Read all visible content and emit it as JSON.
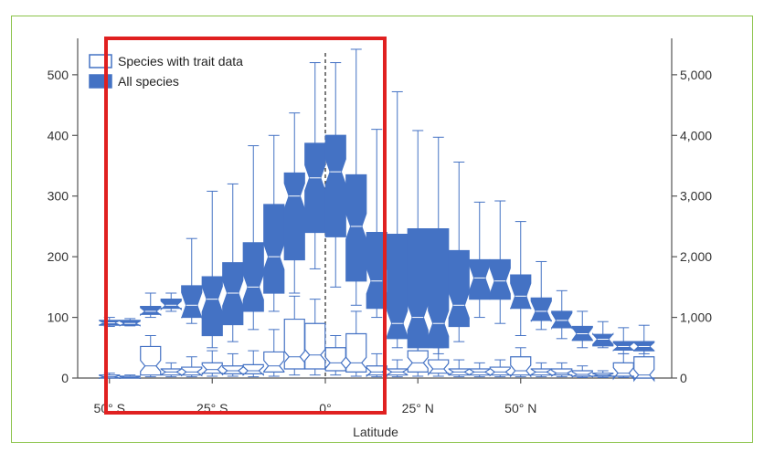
{
  "chart_data": {
    "type": "box",
    "xlabel": "Latitude",
    "x_tick_labels": [
      "50° S",
      "25° S",
      "0°",
      "25° N",
      "50° N"
    ],
    "x_tick_values": [
      -52.5,
      -27.5,
      0,
      22.5,
      47.5
    ],
    "x_domain": [
      -56,
      80
    ],
    "y_left_ticks": [
      "0",
      "100",
      "200",
      "300",
      "400",
      "500"
    ],
    "y_left_range": [
      0,
      560
    ],
    "y_right_ticks": [
      "0",
      "1,000",
      "2,000",
      "3,000",
      "4,000",
      "5,000"
    ],
    "y_right_range": [
      0,
      5600
    ],
    "zero_line_x": 0,
    "legend": {
      "placement": "top-left",
      "entries": [
        "Species with trait data",
        "All species"
      ]
    },
    "colors": {
      "box": "#4472c4",
      "highlight": "#e02020",
      "frame": "#8bc34a"
    },
    "series": [
      {
        "name": "All species",
        "axis": "right",
        "style": "filled",
        "boxes": [
          {
            "lat": -52.5,
            "min": 850,
            "q1": 870,
            "median": 910,
            "q3": 950,
            "max": 1000
          },
          {
            "lat": -47.5,
            "min": 860,
            "q1": 870,
            "median": 900,
            "q3": 950,
            "max": 980
          },
          {
            "lat": -42.5,
            "min": 1000,
            "q1": 1050,
            "median": 1100,
            "q3": 1180,
            "max": 1400
          },
          {
            "lat": -37.5,
            "min": 1100,
            "q1": 1150,
            "median": 1200,
            "q3": 1300,
            "max": 1400
          },
          {
            "lat": -32.5,
            "min": 900,
            "q1": 1000,
            "median": 1200,
            "q3": 1520,
            "max": 2300
          },
          {
            "lat": -27.5,
            "min": 500,
            "q1": 700,
            "median": 1300,
            "q3": 1670,
            "max": 3080
          },
          {
            "lat": -22.5,
            "min": 600,
            "q1": 880,
            "median": 1400,
            "q3": 1900,
            "max": 3200
          },
          {
            "lat": -17.5,
            "min": 800,
            "q1": 1100,
            "median": 1500,
            "q3": 2230,
            "max": 3830
          },
          {
            "lat": -12.5,
            "min": 1100,
            "q1": 1400,
            "median": 2000,
            "q3": 2860,
            "max": 4000
          },
          {
            "lat": -7.5,
            "min": 1400,
            "q1": 1950,
            "median": 3000,
            "q3": 3380,
            "max": 4370
          },
          {
            "lat": -2.5,
            "min": 1800,
            "q1": 2400,
            "median": 3300,
            "q3": 3870,
            "max": 5200
          },
          {
            "lat": 2.5,
            "min": 1500,
            "q1": 2330,
            "median": 3400,
            "q3": 4000,
            "max": 5200
          },
          {
            "lat": 7.5,
            "min": 1200,
            "q1": 1600,
            "median": 2500,
            "q3": 3350,
            "max": 5420
          },
          {
            "lat": 12.5,
            "min": 1000,
            "q1": 1150,
            "median": 1600,
            "q3": 2400,
            "max": 4100
          },
          {
            "lat": 17.5,
            "min": 500,
            "q1": 650,
            "median": 900,
            "q3": 2370,
            "max": 4720
          },
          {
            "lat": 22.5,
            "min": 400,
            "q1": 500,
            "median": 1000,
            "q3": 2460,
            "max": 4080
          },
          {
            "lat": 27.5,
            "min": 400,
            "q1": 500,
            "median": 900,
            "q3": 2460,
            "max": 3970
          },
          {
            "lat": 32.5,
            "min": 600,
            "q1": 850,
            "median": 1200,
            "q3": 2100,
            "max": 3560
          },
          {
            "lat": 37.5,
            "min": 1000,
            "q1": 1300,
            "median": 1650,
            "q3": 1950,
            "max": 2900
          },
          {
            "lat": 42.5,
            "min": 900,
            "q1": 1300,
            "median": 1600,
            "q3": 1950,
            "max": 2920
          },
          {
            "lat": 47.5,
            "min": 700,
            "q1": 1150,
            "median": 1350,
            "q3": 1700,
            "max": 2580
          },
          {
            "lat": 52.5,
            "min": 800,
            "q1": 950,
            "median": 1100,
            "q3": 1320,
            "max": 1920
          },
          {
            "lat": 57.5,
            "min": 650,
            "q1": 830,
            "median": 950,
            "q3": 1100,
            "max": 1440
          },
          {
            "lat": 62.5,
            "min": 500,
            "q1": 620,
            "median": 730,
            "q3": 850,
            "max": 1100
          },
          {
            "lat": 67.5,
            "min": 500,
            "q1": 530,
            "median": 640,
            "q3": 720,
            "max": 930
          },
          {
            "lat": 72.5,
            "min": 400,
            "q1": 460,
            "median": 520,
            "q3": 600,
            "max": 830
          },
          {
            "lat": 77.5,
            "min": 400,
            "q1": 450,
            "median": 520,
            "q3": 600,
            "max": 870
          }
        ]
      },
      {
        "name": "Species with trait data",
        "axis": "left",
        "style": "outline",
        "boxes": [
          {
            "lat": -52.5,
            "min": 0,
            "q1": 0,
            "median": 2,
            "q3": 5,
            "max": 8
          },
          {
            "lat": -47.5,
            "min": 0,
            "q1": 0,
            "median": 1,
            "q3": 3,
            "max": 5
          },
          {
            "lat": -42.5,
            "min": 2,
            "q1": 5,
            "median": 20,
            "q3": 52,
            "max": 70
          },
          {
            "lat": -37.5,
            "min": 2,
            "q1": 5,
            "median": 10,
            "q3": 15,
            "max": 25
          },
          {
            "lat": -32.5,
            "min": 2,
            "q1": 5,
            "median": 10,
            "q3": 18,
            "max": 35
          },
          {
            "lat": -27.5,
            "min": 3,
            "q1": 8,
            "median": 14,
            "q3": 25,
            "max": 45
          },
          {
            "lat": -22.5,
            "min": 3,
            "q1": 7,
            "median": 12,
            "q3": 20,
            "max": 40
          },
          {
            "lat": -17.5,
            "min": 2,
            "q1": 7,
            "median": 12,
            "q3": 22,
            "max": 45
          },
          {
            "lat": -12.5,
            "min": 3,
            "q1": 10,
            "median": 20,
            "q3": 43,
            "max": 80
          },
          {
            "lat": -7.5,
            "min": 5,
            "q1": 15,
            "median": 35,
            "q3": 97,
            "max": 135
          },
          {
            "lat": -2.5,
            "min": 5,
            "q1": 15,
            "median": 38,
            "q3": 90,
            "max": 130
          },
          {
            "lat": 2.5,
            "min": 5,
            "q1": 12,
            "median": 25,
            "q3": 50,
            "max": 70
          },
          {
            "lat": 7.5,
            "min": 3,
            "q1": 10,
            "median": 25,
            "q3": 73,
            "max": 110
          },
          {
            "lat": 12.5,
            "min": 2,
            "q1": 5,
            "median": 10,
            "q3": 20,
            "max": 40
          },
          {
            "lat": 17.5,
            "min": 2,
            "q1": 5,
            "median": 10,
            "q3": 15,
            "max": 30
          },
          {
            "lat": 22.5,
            "min": 3,
            "q1": 10,
            "median": 25,
            "q3": 45,
            "max": 60
          },
          {
            "lat": 27.5,
            "min": 3,
            "q1": 8,
            "median": 15,
            "q3": 30,
            "max": 50
          },
          {
            "lat": 32.5,
            "min": 2,
            "q1": 5,
            "median": 10,
            "q3": 15,
            "max": 30
          },
          {
            "lat": 37.5,
            "min": 2,
            "q1": 5,
            "median": 10,
            "q3": 15,
            "max": 25
          },
          {
            "lat": 42.5,
            "min": 2,
            "q1": 5,
            "median": 10,
            "q3": 18,
            "max": 30
          },
          {
            "lat": 47.5,
            "min": 2,
            "q1": 5,
            "median": 12,
            "q3": 35,
            "max": 50
          },
          {
            "lat": 52.5,
            "min": 2,
            "q1": 5,
            "median": 10,
            "q3": 15,
            "max": 25
          },
          {
            "lat": 57.5,
            "min": 2,
            "q1": 5,
            "median": 8,
            "q3": 15,
            "max": 25
          },
          {
            "lat": 62.5,
            "min": 1,
            "q1": 3,
            "median": 6,
            "q3": 12,
            "max": 20
          },
          {
            "lat": 67.5,
            "min": 1,
            "q1": 3,
            "median": 5,
            "q3": 8,
            "max": 12
          },
          {
            "lat": 72.5,
            "min": 1,
            "q1": 3,
            "median": 8,
            "q3": 25,
            "max": 40
          },
          {
            "lat": 77.5,
            "min": 0,
            "q1": 0,
            "median": 5,
            "q3": 35,
            "max": 50
          }
        ]
      }
    ]
  }
}
